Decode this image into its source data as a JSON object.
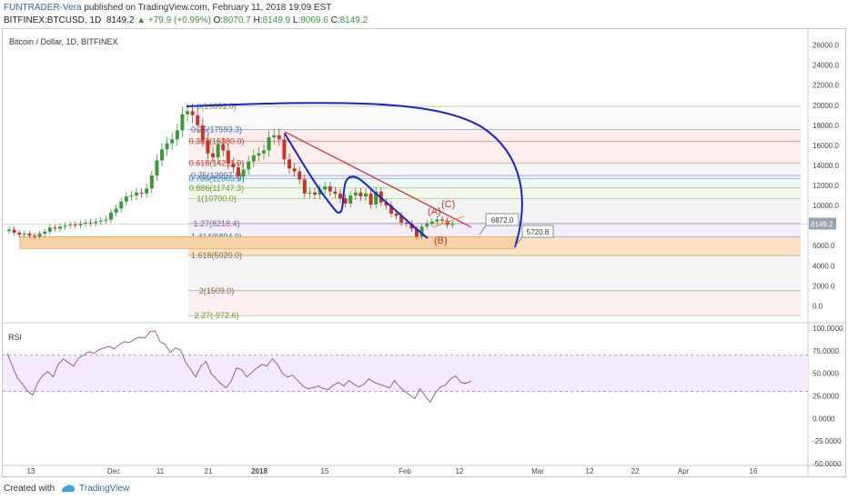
{
  "header": {
    "author": "FUNTRADER-Vera",
    "published": "published on TradingView.com, February 11, 2018 19:09 EST",
    "symbol": "BITFINEX:BTCUSD, 1D",
    "last": "8149.2",
    "change": "▲ +79.9 (+0.99%)",
    "ohlc": {
      "o_label": "O:",
      "o": "8070.7",
      "h_label": "H:",
      "h": "8149.9",
      "l_label": "L:",
      "l": "8069.6",
      "c_label": "C:",
      "c": "8149.2"
    }
  },
  "footer": {
    "created_with": "Created with",
    "brand": "TradingView"
  },
  "colors": {
    "up": "#3a9a3a",
    "down": "#c0392b",
    "blue_arc": "#1a24c8",
    "red_trend": "#d9262c",
    "rsi": "#8a4fa8",
    "fib_zone_orange": "#f7d3a8",
    "last_price_tag": "#9aa3ad"
  },
  "chart_data": [
    {
      "type": "candlestick",
      "title": "Bitcoin / Dollar, 1D, BITFINEX",
      "x_ticks": [
        "13",
        "Dec",
        "11",
        "21",
        "2018",
        "15",
        "Feb",
        "12",
        "Mar",
        "12",
        "22",
        "Apr",
        "16"
      ],
      "y_ticks": [
        "26000.0",
        "24000.0",
        "22000.0",
        "20000.0",
        "18000.0",
        "16000.0",
        "14000.0",
        "12000.0",
        "10000.0",
        "8000.0",
        "6000.0",
        "4000.0",
        "2000.0",
        "0.0"
      ],
      "ylim": [
        -1500,
        27500
      ],
      "last_price_label": "8149.2",
      "closes": [
        7600,
        7300,
        7100,
        7200,
        7000,
        6900,
        7200,
        7400,
        7800,
        7700,
        7900,
        8000,
        8100,
        8050,
        8200,
        8300,
        8250,
        8400,
        8500,
        8600,
        9300,
        9700,
        10400,
        10900,
        11000,
        11300,
        11200,
        11700,
        13000,
        14500,
        15600,
        16200,
        16600,
        17500,
        19100,
        19400,
        19000,
        18000,
        16500,
        15200,
        14800,
        16100,
        15500,
        14200,
        13800,
        12900,
        13600,
        14400,
        15000,
        15200,
        15500,
        16800,
        17000,
        16600,
        14600,
        13700,
        13400,
        12600,
        11200,
        11300,
        11100,
        11600,
        11900,
        11400,
        11200,
        10700,
        10200,
        11000,
        11300,
        10900,
        11200,
        10100,
        11400,
        10300,
        10000,
        9200,
        9000,
        8300,
        8200,
        7700,
        6900,
        7900,
        8200,
        8400,
        8600,
        8500,
        8070,
        8149
      ],
      "candle_colors_up": "#3a9a3a",
      "candle_colors_down": "#c0392b",
      "fib_levels": [
        {
          "label": "0(19891.0)",
          "value": 19891,
          "color": "#6a9a3a",
          "band": "#fbfbfb"
        },
        {
          "label": "0.25(17593.3)",
          "value": 17593,
          "color": "#2f6fb5",
          "band": "#fdecec"
        },
        {
          "label": "0.382(16380.0)",
          "value": 16380,
          "color": "#c0392b",
          "band": "#fdeeee"
        },
        {
          "label": "0.618(14211.0)",
          "value": 14211,
          "color": "#c0392b",
          "band": "#f6f6f6"
        },
        {
          "label": "0.75(12997.5)",
          "value": 12997,
          "color": "#5a5ab0",
          "band": "#eef0fb"
        },
        {
          "label": "0.786(12665.9)",
          "value": 12666,
          "color": "#2f8fb5",
          "band": "#eef8f8"
        },
        {
          "label": "0.886(11747.3)",
          "value": 11747,
          "color": "#6a9a3a",
          "band": "#f2f8ea"
        },
        {
          "label": "1(10700.0)",
          "value": 10700,
          "color": "#6a9a3a",
          "band": "#f3f3f3"
        },
        {
          "label": "1.27(8218.4)",
          "value": 8218,
          "color": "#8a4fa8",
          "band": "#f3eefa"
        },
        {
          "label": "1.414(6894.9)",
          "value": 6895,
          "color": "#2f6fb5",
          "band": "#fbe2c6"
        },
        {
          "label": "1.618(5020.0)",
          "value": 5020,
          "color": "#8a6a3a",
          "band": "#f4f4f4"
        },
        {
          "label": "2(1509.0)",
          "value": 1509,
          "color": "#8a6a3a",
          "band": "#fbf0f0"
        },
        {
          "label": "2.27(-972.6)",
          "value": -973,
          "color": "#6a9a3a",
          "band": "none"
        }
      ],
      "callouts": [
        {
          "label": "6872.0",
          "value": 6872
        },
        {
          "label": "5720.8",
          "value": 5720.8
        }
      ],
      "wave_labels": [
        "(A)",
        "(B)",
        "(C)"
      ]
    },
    {
      "type": "line",
      "title": "RSI",
      "y_ticks": [
        "100.0000",
        "75.0000",
        "50.0000",
        "25.0000",
        "0.0000",
        "-25.0000",
        "-50.0000"
      ],
      "ylim": [
        -52,
        104
      ],
      "band": [
        30,
        70
      ],
      "values": [
        72,
        58,
        45,
        38,
        30,
        26,
        40,
        48,
        52,
        46,
        60,
        66,
        62,
        58,
        67,
        70,
        74,
        72,
        76,
        78,
        80,
        77,
        82,
        85,
        84,
        88,
        90,
        89,
        96,
        97,
        85,
        82,
        73,
        78,
        76,
        62,
        54,
        46,
        58,
        63,
        50,
        44,
        38,
        34,
        42,
        56,
        54,
        46,
        51,
        56,
        60,
        58,
        66,
        60,
        50,
        46,
        48,
        42,
        36,
        33,
        34,
        36,
        33,
        32,
        37,
        40,
        36,
        42,
        38,
        35,
        38,
        44,
        40,
        38,
        36,
        34,
        42,
        35,
        30,
        26,
        22,
        33,
        25,
        18,
        28,
        35,
        37,
        44,
        47,
        40,
        39,
        41
      ]
    }
  ]
}
